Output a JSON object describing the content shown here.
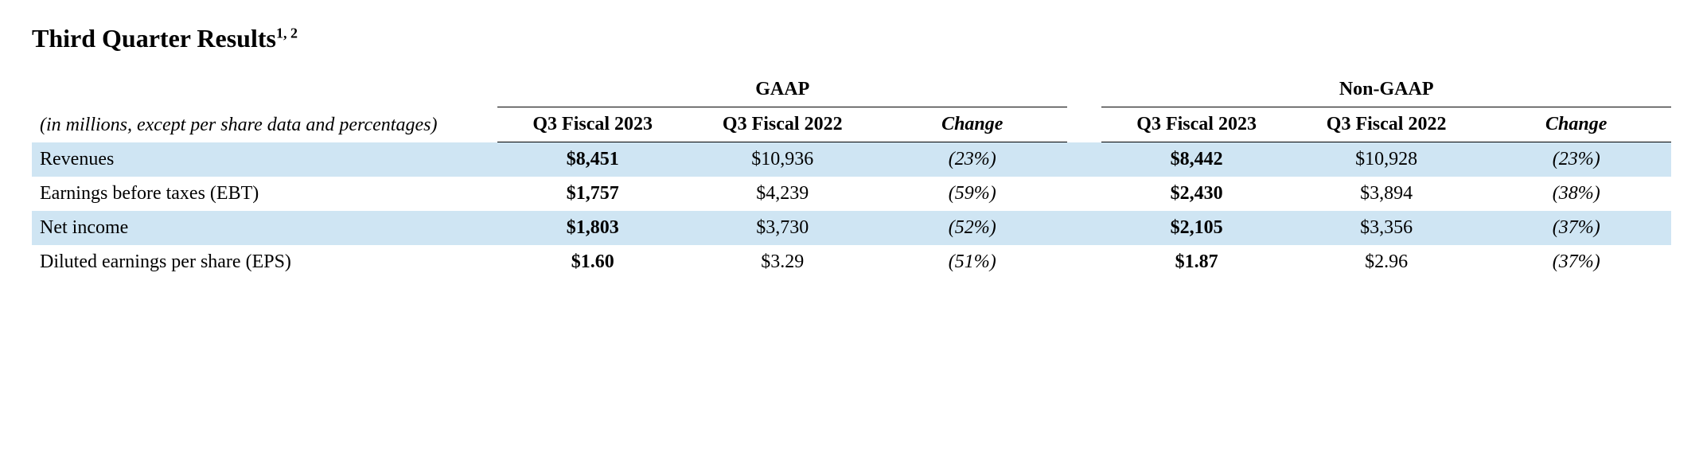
{
  "title_main": "Third Quarter Results",
  "title_sup": "1, 2",
  "subtitle": "(in millions, except per share data and percentages)",
  "groups": {
    "g1": "GAAP",
    "g2": "Non-GAAP"
  },
  "cols": {
    "c1": "Q3 Fiscal 2023",
    "c2": "Q3 Fiscal 2022",
    "c3": "Change",
    "c4": "Q3 Fiscal 2023",
    "c5": "Q3 Fiscal 2022",
    "c6": "Change"
  },
  "rows": {
    "r0": {
      "label": "Revenues",
      "v1": "$8,451",
      "v2": "$10,936",
      "v3": "(23%)",
      "v4": "$8,442",
      "v5": "$10,928",
      "v6": "(23%)"
    },
    "r1": {
      "label": "Earnings before taxes (EBT)",
      "v1": "$1,757",
      "v2": "$4,239",
      "v3": "(59%)",
      "v4": "$2,430",
      "v5": "$3,894",
      "v6": "(38%)"
    },
    "r2": {
      "label": "Net income",
      "v1": "$1,803",
      "v2": "$3,730",
      "v3": "(52%)",
      "v4": "$2,105",
      "v5": "$3,356",
      "v6": "(37%)"
    },
    "r3": {
      "label": "Diluted earnings per share (EPS)",
      "v1": "$1.60",
      "v2": "$3.29",
      "v3": "(51%)",
      "v4": "$1.87",
      "v5": "$2.96",
      "v6": "(37%)"
    }
  },
  "colors": {
    "shade": "#cfe5f3",
    "text": "#000000",
    "bg": "#ffffff",
    "rule": "#000000"
  },
  "font": {
    "family": "Times New Roman",
    "title_pt": 32,
    "body_pt": 24
  }
}
